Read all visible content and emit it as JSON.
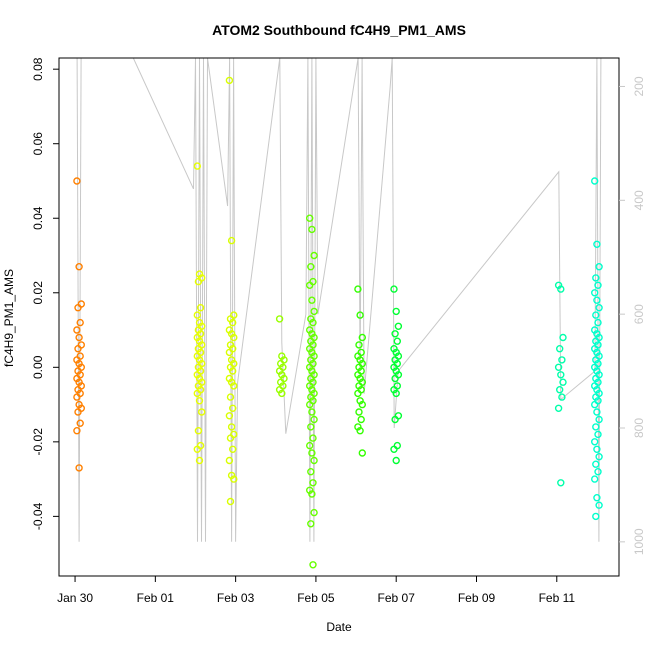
{
  "chart_data": {
    "type": "scatter",
    "title": "ATOM2 Southbound fC4H9_PM1_AMS",
    "xlabel": "Date",
    "ylabel": "fC4H9_PM1_AMS",
    "x_ticks": [
      "Jan 30",
      "Feb 01",
      "Feb 03",
      "Feb 05",
      "Feb 07",
      "Feb 09",
      "Feb 11"
    ],
    "x_range_days": [
      -2.45,
      11.5
    ],
    "y_ticks": [
      "-0.04",
      "-0.02",
      "0.00",
      "0.02",
      "0.04",
      "0.06",
      "0.08"
    ],
    "y_ticks_values": [
      -0.04,
      -0.02,
      0.0,
      0.02,
      0.04,
      0.06,
      0.08
    ],
    "ylim": [
      -0.056,
      0.083
    ],
    "right_axis": {
      "ticks": [
        "200",
        "400",
        "600",
        "800",
        "1000"
      ],
      "ticks_values": [
        200,
        400,
        600,
        800,
        1000
      ],
      "range": [
        150,
        1060
      ],
      "reversed": true,
      "color": "#c8c8c8"
    },
    "altitude_line_color": "#c8c8c8",
    "color_scale": [
      "#ff8000",
      "#ffcc00",
      "#e6ff00",
      "#80ff00",
      "#33ff00",
      "#00ff33",
      "#00ff99",
      "#00ffcc"
    ],
    "groups": [
      {
        "day": -1.95,
        "color": "#ff8000",
        "values": [
          0.05,
          0.027,
          0.017,
          0.016,
          0.012,
          0.01,
          0.008,
          0.006,
          0.005,
          0.003,
          0.002,
          0.001,
          0.0,
          -0.001,
          -0.002,
          -0.003,
          -0.004,
          -0.005,
          -0.006,
          -0.007,
          -0.008,
          -0.01,
          -0.011,
          -0.012,
          -0.015,
          -0.017,
          -0.027
        ]
      },
      {
        "day": 1.05,
        "color": "#e6ff00",
        "values": [
          0.054,
          0.025,
          0.024,
          0.023,
          0.016,
          0.014,
          0.012,
          0.011,
          0.01,
          0.009,
          0.008,
          0.007,
          0.006,
          0.005,
          0.004,
          0.003,
          0.002,
          0.001,
          0.0,
          -0.001,
          -0.002,
          -0.003,
          -0.004,
          -0.005,
          -0.006,
          -0.007,
          -0.009,
          -0.012,
          -0.017,
          -0.021,
          -0.022,
          -0.025
        ]
      },
      {
        "day": 1.85,
        "color": "#d9ff00",
        "values": [
          0.077,
          0.034,
          0.014,
          0.013,
          0.012,
          0.01,
          0.009,
          0.008,
          0.006,
          0.005,
          0.004,
          0.002,
          0.001,
          0.0,
          -0.001,
          -0.003,
          -0.004,
          -0.005,
          -0.008,
          -0.011,
          -0.013,
          -0.016,
          -0.018,
          -0.019,
          -0.022,
          -0.025,
          -0.029,
          -0.03,
          -0.036
        ]
      },
      {
        "day": 3.1,
        "color": "#99ff00",
        "values": [
          0.013,
          0.003,
          0.002,
          0.001,
          0.0,
          -0.001,
          -0.002,
          -0.003,
          -0.004,
          -0.005,
          -0.006,
          -0.007
        ]
      },
      {
        "day": 3.85,
        "color": "#66ff00",
        "values": [
          0.04,
          0.037,
          0.03,
          0.027,
          0.023,
          0.022,
          0.018,
          0.015,
          0.013,
          0.012,
          0.01,
          0.009,
          0.008,
          0.007,
          0.006,
          0.005,
          0.004,
          0.003,
          0.002,
          0.001,
          0.0,
          -0.001,
          -0.002,
          -0.003,
          -0.004,
          -0.005,
          -0.006,
          -0.007,
          -0.008,
          -0.009,
          -0.01,
          -0.012,
          -0.014,
          -0.016,
          -0.019,
          -0.021,
          -0.023,
          -0.025,
          -0.028,
          -0.031,
          -0.033,
          -0.034,
          -0.039,
          -0.042,
          -0.053
        ]
      },
      {
        "day": 5.05,
        "color": "#33ff00",
        "values": [
          0.021,
          0.014,
          0.008,
          0.006,
          0.004,
          0.003,
          0.002,
          0.001,
          0.0,
          -0.001,
          -0.002,
          -0.003,
          -0.004,
          -0.005,
          -0.006,
          -0.007,
          -0.009,
          -0.01,
          -0.012,
          -0.014,
          -0.016,
          -0.017,
          -0.023
        ]
      },
      {
        "day": 5.95,
        "color": "#00ff33",
        "values": [
          0.021,
          0.015,
          0.011,
          0.009,
          0.007,
          0.005,
          0.004,
          0.003,
          0.002,
          0.001,
          0.0,
          -0.001,
          -0.002,
          -0.003,
          -0.005,
          -0.006,
          -0.007,
          -0.013,
          -0.014,
          -0.021,
          -0.022,
          -0.025
        ]
      },
      {
        "day": 10.05,
        "color": "#00ffaa",
        "values": [
          0.022,
          0.021,
          0.008,
          0.005,
          0.002,
          0.0,
          -0.002,
          -0.004,
          -0.006,
          -0.008,
          -0.011,
          -0.031
        ]
      },
      {
        "day": 10.95,
        "color": "#00ffcc",
        "values": [
          0.05,
          0.033,
          0.027,
          0.024,
          0.022,
          0.02,
          0.018,
          0.016,
          0.014,
          0.012,
          0.01,
          0.009,
          0.008,
          0.007,
          0.006,
          0.005,
          0.004,
          0.003,
          0.002,
          0.001,
          0.0,
          -0.001,
          -0.002,
          -0.003,
          -0.004,
          -0.005,
          -0.006,
          -0.007,
          -0.008,
          -0.009,
          -0.01,
          -0.012,
          -0.014,
          -0.016,
          -0.018,
          -0.02,
          -0.022,
          -0.024,
          -0.026,
          -0.028,
          -0.03,
          -0.035,
          -0.037,
          -0.04
        ]
      }
    ],
    "altitude_path": [
      [
        -2.0,
        150
      ],
      [
        -1.95,
        1000
      ],
      [
        -1.9,
        150
      ],
      [
        -0.6,
        150
      ],
      [
        0.9,
        380
      ],
      [
        0.95,
        150
      ],
      [
        1.0,
        1000
      ],
      [
        1.05,
        150
      ],
      [
        1.1,
        1000
      ],
      [
        1.15,
        150
      ],
      [
        1.2,
        1000
      ],
      [
        1.25,
        150
      ],
      [
        1.75,
        410
      ],
      [
        1.8,
        150
      ],
      [
        1.85,
        1000
      ],
      [
        1.9,
        150
      ],
      [
        1.95,
        1000
      ],
      [
        2.0,
        720
      ],
      [
        3.05,
        150
      ],
      [
        3.1,
        650
      ],
      [
        3.2,
        810
      ],
      [
        3.7,
        600
      ],
      [
        3.75,
        150
      ],
      [
        3.8,
        1000
      ],
      [
        3.85,
        150
      ],
      [
        3.9,
        1000
      ],
      [
        3.95,
        150
      ],
      [
        4.0,
        600
      ],
      [
        5.0,
        150
      ],
      [
        5.05,
        700
      ],
      [
        5.1,
        150
      ],
      [
        5.15,
        740
      ],
      [
        5.8,
        200
      ],
      [
        5.85,
        150
      ],
      [
        5.9,
        800
      ],
      [
        6.0,
        700
      ],
      [
        10.0,
        350
      ],
      [
        10.05,
        750
      ],
      [
        10.9,
        700
      ],
      [
        10.95,
        150
      ],
      [
        11.0,
        1000
      ],
      [
        11.05,
        150
      ]
    ]
  }
}
